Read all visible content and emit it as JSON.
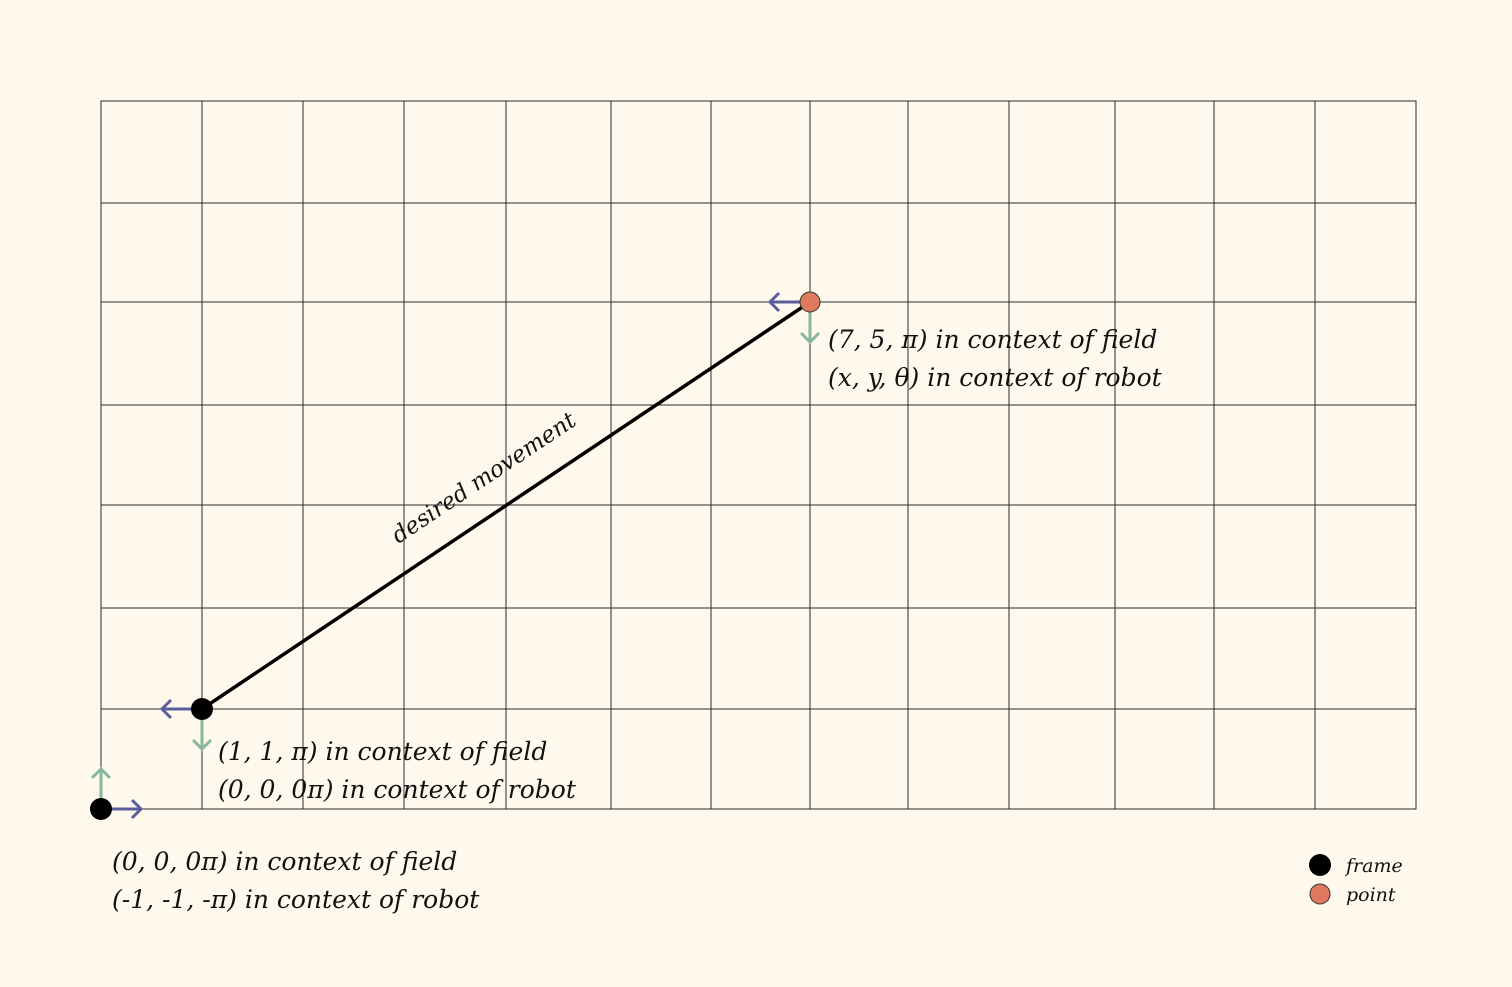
{
  "colors": {
    "background": "#fef9ec",
    "grid": "#2b2b2b",
    "frame": "#000000",
    "point": "#e07a5f",
    "x_axis_arrow": "#5b5e9e",
    "y_axis_arrow": "#86b89c"
  },
  "grid": {
    "columns": 13,
    "rows": 7
  },
  "movement": {
    "from": [
      1,
      1
    ],
    "to": [
      7,
      5
    ],
    "label": "desired movement"
  },
  "markers": [
    {
      "id": "origin",
      "kind": "frame",
      "field_pos": [
        0,
        0
      ],
      "orientation": "0",
      "line1": "(0, 0, 0π) in context of field",
      "line2": "(-1, -1, -π) in context of robot"
    },
    {
      "id": "robot",
      "kind": "frame",
      "field_pos": [
        1,
        1
      ],
      "orientation": "π",
      "line1": "(1, 1, π) in context of field",
      "line2": "(0, 0, 0π) in context of robot"
    },
    {
      "id": "target",
      "kind": "point",
      "field_pos": [
        7,
        5
      ],
      "orientation": "π",
      "line1": "(7, 5, π) in context of field",
      "line2": "(x, y, θ) in context of robot"
    }
  ],
  "legend": {
    "items": [
      {
        "kind": "frame",
        "label": "frame"
      },
      {
        "kind": "point",
        "label": "point"
      }
    ]
  }
}
